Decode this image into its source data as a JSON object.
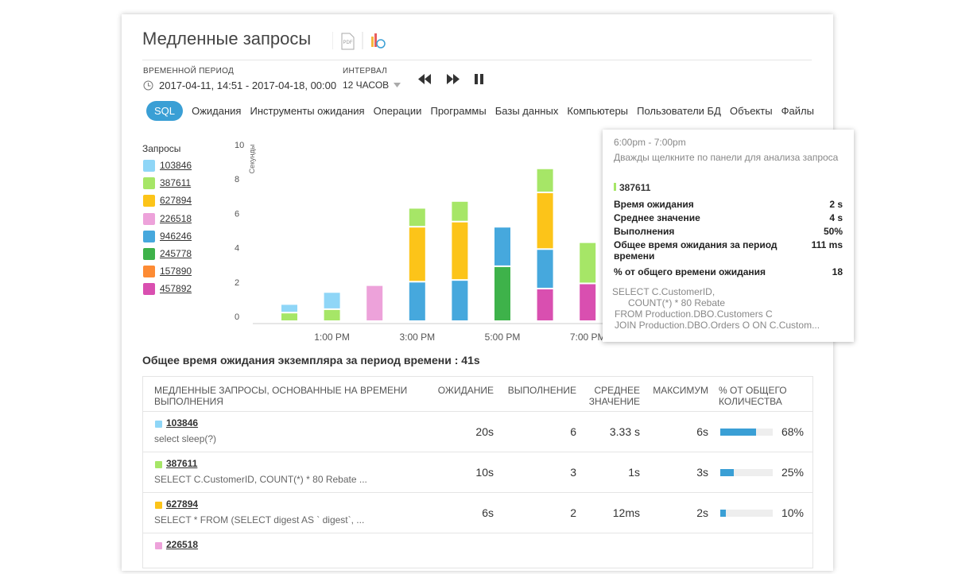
{
  "header": {
    "title": "Медленные запросы",
    "pdf_icon": "PDF",
    "period_label": "ВРЕМЕННОЙ ПЕРИОД",
    "period": "2017-04-11, 14:51 - 2017-04-18, 00:00",
    "interval_label": "ИНТЕРВАЛ",
    "interval": "12 ЧАСОВ"
  },
  "tabs": [
    "SQL",
    "Ожидания",
    "Инструменты ожидания",
    "Операции",
    "Программы",
    "Базы данных",
    "Компьютеры",
    "Пользователи БД",
    "Объекты",
    "Файлы"
  ],
  "active_tab": 0,
  "chart_data": {
    "type": "bar",
    "stacked": true,
    "legend_title": "Запросы",
    "ylabel": "Секунды",
    "categories": [
      null,
      "1:00 PM",
      null,
      "3:00 PM",
      null,
      "5:00 PM",
      null,
      "7:00 PM"
    ],
    "ylim": [
      0,
      10
    ],
    "yticks": [
      0,
      2,
      4,
      6,
      8,
      10
    ],
    "series": [
      {
        "name": "103846",
        "color": "#8fd6f7",
        "values": [
          0.5,
          1.0,
          null,
          null,
          null,
          null,
          null,
          null
        ]
      },
      {
        "name": "387611",
        "color": "#a6e667",
        "values": [
          0.5,
          0.7,
          null,
          1.1,
          1.2,
          null,
          1.4,
          2.4
        ]
      },
      {
        "name": "627894",
        "color": "#fcc419",
        "values": [
          null,
          null,
          null,
          3.2,
          3.4,
          null,
          3.3,
          null
        ]
      },
      {
        "name": "226518",
        "color": "#eda2da",
        "values": [
          null,
          null,
          2.1,
          null,
          null,
          null,
          null,
          null
        ]
      },
      {
        "name": "946246",
        "color": "#46a8dd",
        "values": [
          null,
          null,
          null,
          2.3,
          2.4,
          2.3,
          2.3,
          null
        ]
      },
      {
        "name": "245778",
        "color": "#3eb24a",
        "values": [
          null,
          null,
          null,
          null,
          null,
          3.2,
          null,
          null
        ]
      },
      {
        "name": "157890",
        "color": "#fd8b34",
        "values": [
          null,
          null,
          null,
          null,
          null,
          null,
          null,
          null
        ]
      },
      {
        "name": "457892",
        "color": "#d94fb0",
        "values": [
          null,
          null,
          null,
          null,
          null,
          null,
          1.9,
          2.2
        ]
      }
    ]
  },
  "tooltip": {
    "time": "6:00pm - 7:00pm",
    "hint": "Дважды щелкните по панели для анализа запроса",
    "query": "387611",
    "rows": [
      [
        "Время ожидания",
        "2 s"
      ],
      [
        "Среднее значение",
        "4 s"
      ],
      [
        "Выполнения",
        "50%"
      ],
      [
        "Общее время ожидания за период времени",
        "111 ms"
      ],
      [
        "% от общего времени ожидания",
        "18"
      ]
    ],
    "sql": [
      "SELECT C.CustomerID,",
      "COUNT(*) * 80 Rebate",
      "FROM Production.DBO.Customers C",
      "JOIN Production.DBO.Orders O ON C.Custom..."
    ]
  },
  "summary": "Общее время ожидания экземпляра за период времени : 41s",
  "table": {
    "headers": [
      "МЕДЛЕННЫЕ ЗАПРОСЫ, ОСНОВАННЫЕ НА ВРЕМЕНИ ВЫПОЛНЕНИЯ",
      "ОЖИДАНИЕ",
      "ВЫПОЛНЕНИЕ",
      "СРЕДНЕЕ ЗНАЧЕНИЕ",
      "МАКСИМУМ",
      "% ОТ ОБЩЕГО КОЛИЧЕСТВА"
    ],
    "rows": [
      [
        "103846",
        "select sleep(?)",
        "20s",
        "6",
        "3.33 s",
        "6s",
        "68%"
      ],
      [
        "387611",
        "SELECT C.CustomerID, COUNT(*) * 80 Rebate ...",
        "10s",
        "3",
        "1s",
        "3s",
        "25%"
      ],
      [
        "627894",
        "SELECT * FROM (SELECT digest AS ` digest`, ...",
        "6s",
        "2",
        "12ms",
        "2s",
        "10%"
      ],
      [
        "226518"
      ]
    ]
  }
}
